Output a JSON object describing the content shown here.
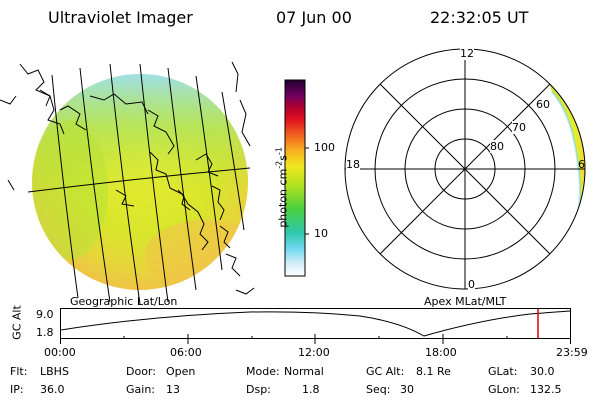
{
  "header": {
    "instrument": "Ultraviolet Imager",
    "date": "07 Jun 00",
    "time": "22:32:05 UT"
  },
  "colorbar": {
    "unit_label": "photon cm",
    "unit_sup1": "-2",
    "unit_mid": "s",
    "unit_sup2": "-1",
    "tick_100": "100",
    "tick_10": "10"
  },
  "panels": {
    "left_caption": "Geographic Lat/Lon",
    "right_caption": "Apex MLat/MLT"
  },
  "polar": {
    "mlt_top": "12",
    "mlt_left": "18",
    "mlt_right": "6",
    "mlt_bottom": "0",
    "lat_80": "80",
    "lat_70": "70",
    "lat_60": "60"
  },
  "altitude_plot": {
    "ylabel": "GC Alt",
    "y_max": "9.0",
    "y_min": "1.8",
    "x_ticks": [
      "00:00",
      "06:00",
      "12:00",
      "18:00",
      "23:59"
    ]
  },
  "status": {
    "row1": [
      {
        "label": "Flt:",
        "value": "LBHS"
      },
      {
        "label": "Door:",
        "value": "Open"
      },
      {
        "label": "Mode:",
        "value": "Normal"
      },
      {
        "label": "GC Alt:",
        "value": "8.1 Re"
      },
      {
        "label": "GLat:",
        "value": "30.0"
      }
    ],
    "row2": [
      {
        "label": "IP:",
        "value": "36.0"
      },
      {
        "label": "Gain:",
        "value": "13"
      },
      {
        "label": "Dsp:",
        "value": "1.8"
      },
      {
        "label": "Seq:",
        "value": "30"
      },
      {
        "label": "GLon:",
        "value": "132.5"
      }
    ]
  },
  "colors": {
    "marker_line": "#e00000"
  }
}
